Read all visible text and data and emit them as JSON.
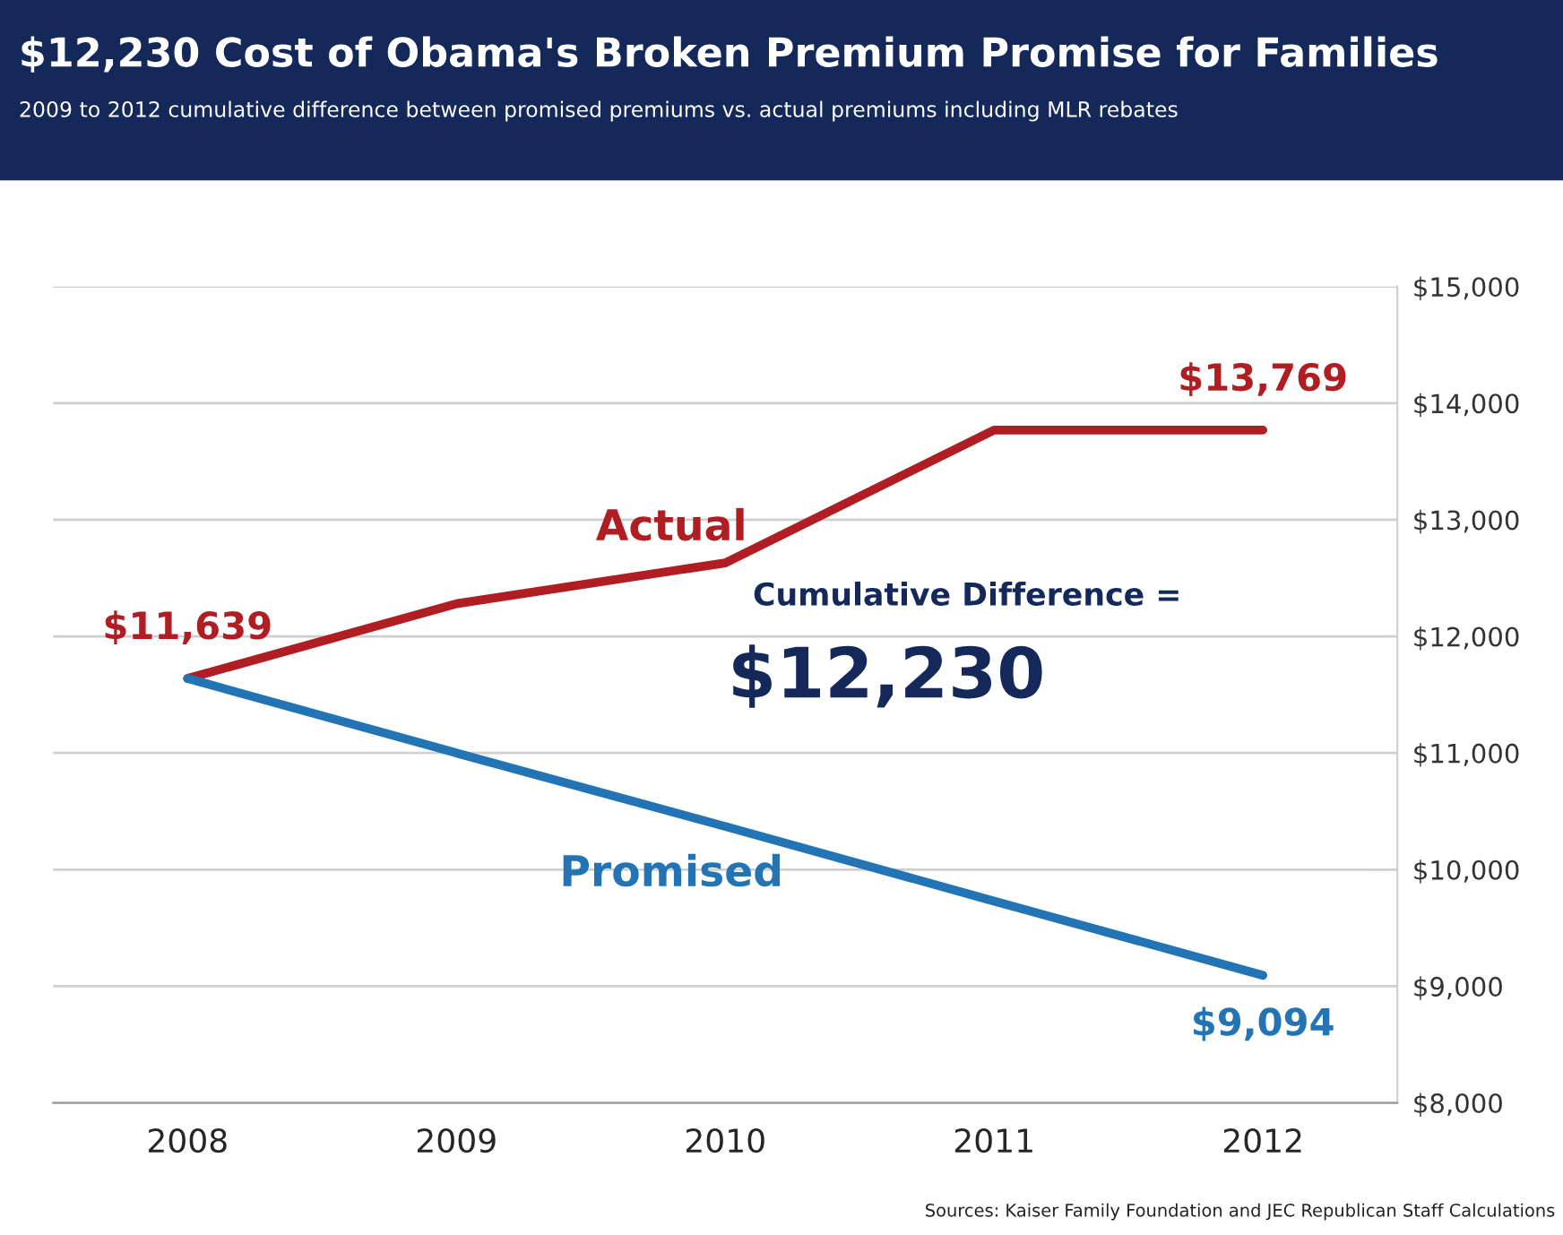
{
  "chart_data": {
    "type": "line",
    "title": "$12,230 Cost of Obama's Broken Premium Promise for Families",
    "subtitle": "2009 to 2012 cumulative difference between promised premiums vs. actual premiums including MLR rebates",
    "categories": [
      "2008",
      "2009",
      "2010",
      "2011",
      "2012"
    ],
    "series": [
      {
        "name": "Actual",
        "color": "#b01e23",
        "values": [
          11639,
          12280,
          12630,
          13769,
          13769
        ],
        "value_labels": [
          "$11,639",
          null,
          null,
          null,
          "$13,769"
        ]
      },
      {
        "name": "Promised",
        "color": "#2274b5",
        "values": [
          11639,
          11000,
          10370,
          9730,
          9094
        ],
        "value_labels": [
          null,
          null,
          null,
          null,
          "$9,094"
        ]
      }
    ],
    "ylim": [
      8000,
      15000
    ],
    "yticks": [
      {
        "value": 8000,
        "label": "$8,000"
      },
      {
        "value": 9000,
        "label": "$9,000"
      },
      {
        "value": 10000,
        "label": "$10,000"
      },
      {
        "value": 11000,
        "label": "$11,000"
      },
      {
        "value": 12000,
        "label": "$12,000"
      },
      {
        "value": 13000,
        "label": "$13,000"
      },
      {
        "value": 14000,
        "label": "$14,000"
      },
      {
        "value": 15000,
        "label": "$15,000"
      }
    ],
    "grid": "y",
    "annotations": [
      "Cumulative Difference =",
      "$12,230",
      "Sources: Kaiser Family Foundation and JEC Republican Staff Calculations"
    ]
  }
}
